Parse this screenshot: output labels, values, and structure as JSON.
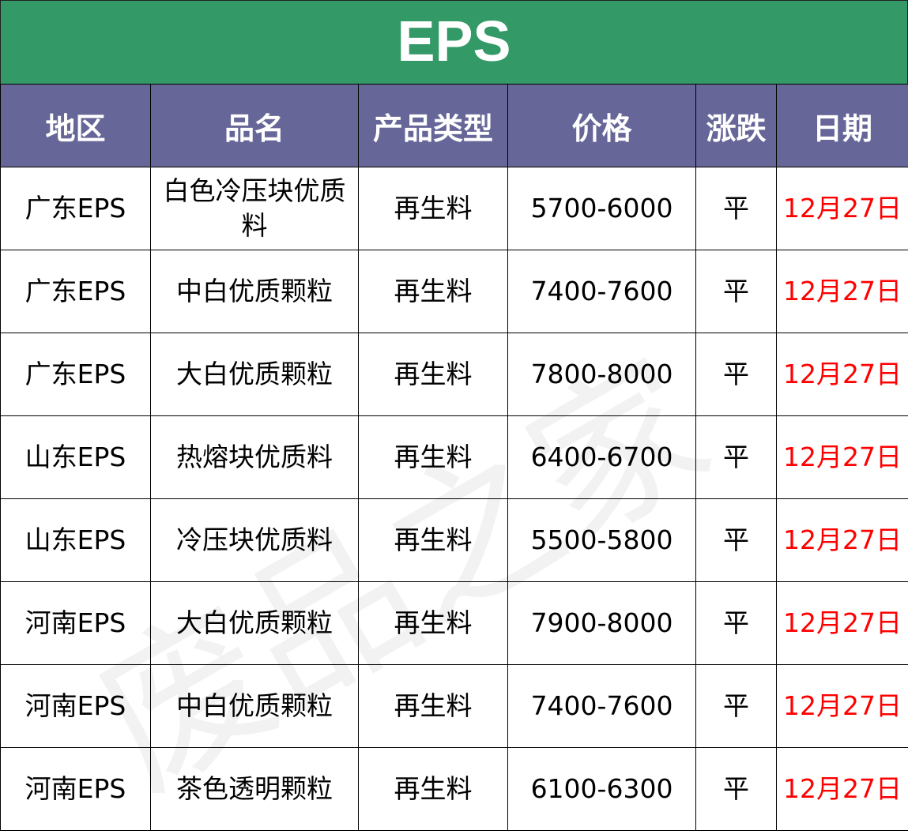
{
  "title": "EPS",
  "headers": [
    "地区",
    "品名",
    "产品类型",
    "价格",
    "涨跌",
    "日期"
  ],
  "rows": [
    {
      "region": "广东EPS",
      "name": "白色冷压块优质料",
      "type": "再生料",
      "price": "5700-6000",
      "change": "平",
      "date": "12月27日"
    },
    {
      "region": "广东EPS",
      "name": "中白优质颗粒",
      "type": "再生料",
      "price": "7400-7600",
      "change": "平",
      "date": "12月27日"
    },
    {
      "region": "广东EPS",
      "name": "大白优质颗粒",
      "type": "再生料",
      "price": "7800-8000",
      "change": "平",
      "date": "12月27日"
    },
    {
      "region": "山东EPS",
      "name": "热熔块优质料",
      "type": "再生料",
      "price": "6400-6700",
      "change": "平",
      "date": "12月27日"
    },
    {
      "region": "山东EPS",
      "name": "冷压块优质料",
      "type": "再生料",
      "price": "5500-5800",
      "change": "平",
      "date": "12月27日"
    },
    {
      "region": "河南EPS",
      "name": "大白优质颗粒",
      "type": "再生料",
      "price": "7900-8000",
      "change": "平",
      "date": "12月27日"
    },
    {
      "region": "河南EPS",
      "name": "中白优质颗粒",
      "type": "再生料",
      "price": "7400-7600",
      "change": "平",
      "date": "12月27日"
    },
    {
      "region": "河南EPS",
      "name": "茶色透明颗粒",
      "type": "再生料",
      "price": "6100-6300",
      "change": "平",
      "date": "12月27日"
    }
  ],
  "watermark": "废品之家",
  "colors": {
    "title_bg": "#339966",
    "header_bg": "#666699",
    "date_text": "#ff0000"
  }
}
